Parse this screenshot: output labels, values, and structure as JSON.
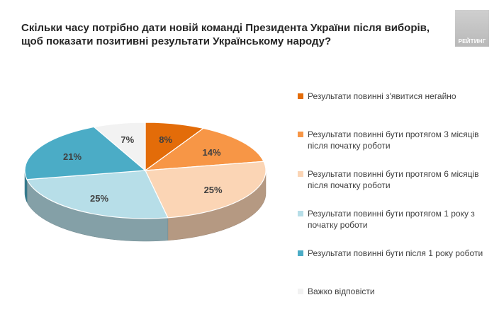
{
  "title": "Скільки часу потрібно дати новій команді Президента України після виборів, щоб показати позитивні результати Українському народу?",
  "logo_text": "РЕЙТИНГ",
  "chart_data": {
    "type": "pie",
    "title": "Скільки часу потрібно дати новій команді Президента України після виборів, щоб показати позитивні результати Українському народу?",
    "style": "3d",
    "legend_position": "right",
    "slices": [
      {
        "label": "Результати повинні з'явитися негайно",
        "value": 8,
        "display": "8%",
        "color": "#e36c09"
      },
      {
        "label": "Результати повинні бути протягом 3 місяців після початку роботи",
        "value": 14,
        "display": "14%",
        "color": "#f79646"
      },
      {
        "label": "Результати повинні бути протягом 6 місяців після початку роботи",
        "value": 25,
        "display": "25%",
        "color": "#fbd5b5"
      },
      {
        "label": "Результати повинні бути протягом 1 року з початку роботи",
        "value": 25,
        "display": "25%",
        "color": "#b7dee8"
      },
      {
        "label": "Результати повинні бути після 1 року роботи",
        "value": 21,
        "display": "21%",
        "color": "#4bacc6"
      },
      {
        "label": "Важко відповісти",
        "value": 7,
        "display": "7%",
        "color": "#f2f2f2"
      }
    ]
  }
}
